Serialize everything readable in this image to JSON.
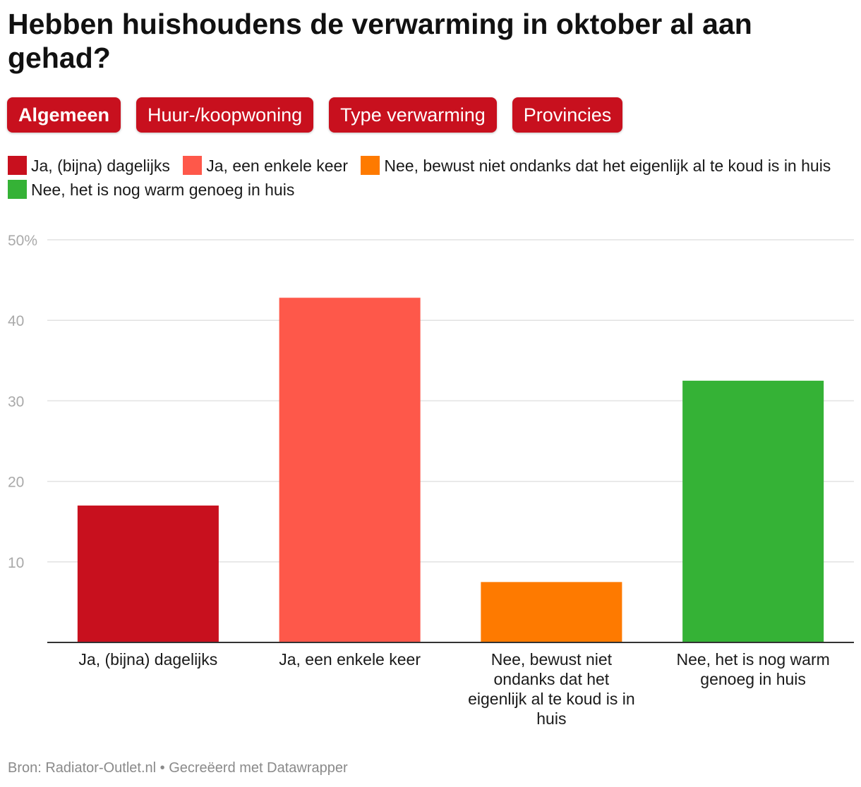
{
  "title": "Hebben huishoudens de verwarming in oktober al aan gehad?",
  "tabs": [
    {
      "label": "Algemeen",
      "active": true
    },
    {
      "label": "Huur-/koopwoning",
      "active": false
    },
    {
      "label": "Type verwarming",
      "active": false
    },
    {
      "label": "Provincies",
      "active": false
    }
  ],
  "legend": [
    {
      "label": "Ja, (bijna) dagelijks",
      "color": "#c8101e"
    },
    {
      "label": "Ja, een enkele keer",
      "color": "#fe584a"
    },
    {
      "label": "Nee, bewust niet ondanks dat het eigenlijk al te koud is in huis",
      "color": "#fe7a00"
    },
    {
      "label": "Nee, het is nog warm genoeg in huis",
      "color": "#35b236"
    }
  ],
  "chart_data": {
    "type": "bar",
    "categories": [
      "Ja, (bijna) dagelijks",
      "Ja, een enkele keer",
      "Nee, bewust niet ondanks dat het eigenlijk al te koud is in huis",
      "Nee, het is nog warm genoeg in huis"
    ],
    "values": [
      17,
      42.8,
      7.5,
      32.5
    ],
    "colors": [
      "#c8101e",
      "#fe584a",
      "#fe7a00",
      "#35b236"
    ],
    "ylim": [
      0,
      50
    ],
    "yticks": [
      {
        "value": 10,
        "label": "10"
      },
      {
        "value": 20,
        "label": "20"
      },
      {
        "value": 30,
        "label": "30"
      },
      {
        "value": 40,
        "label": "40"
      },
      {
        "value": 50,
        "label": "50%"
      }
    ],
    "grid": true
  },
  "footer": "Bron: Radiator-Outlet.nl • Gecreëerd met Datawrapper"
}
